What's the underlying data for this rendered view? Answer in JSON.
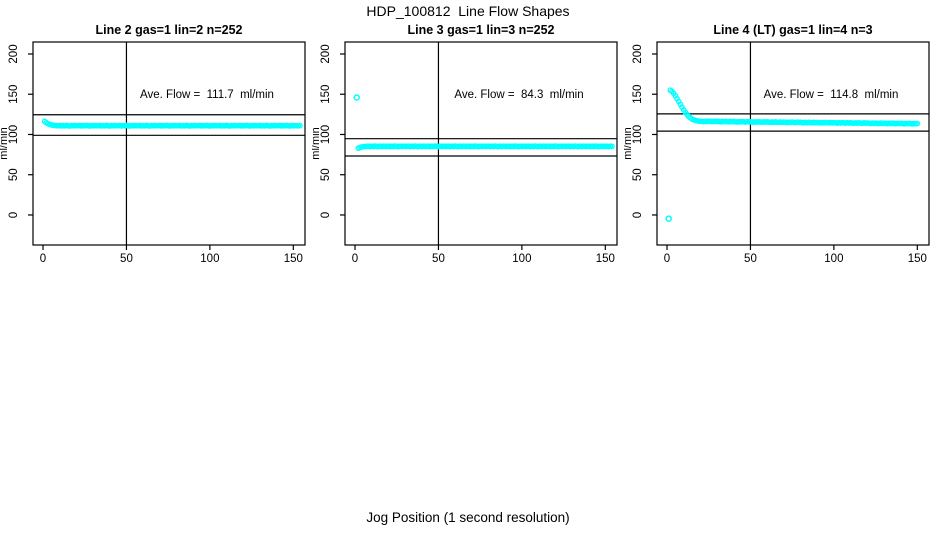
{
  "figure": {
    "title": "HDP_100812  Line Flow Shapes",
    "xlabel": "Jog Position (1 second resolution)",
    "point_color": "#00FFFF",
    "line_color": "#000000",
    "background_color": "#FFFFFF"
  },
  "chart_data": [
    {
      "type": "scatter",
      "title": "Line 2 gas=1 lin=2 n=252",
      "annotation": "Ave. Flow =  111.7  ml/min",
      "ave_flow_ml_min": 111.7,
      "n": 252,
      "ylabel": "ml/min",
      "xticks": [
        0,
        50,
        100,
        150
      ],
      "yticks": [
        0,
        50,
        100,
        150,
        200
      ],
      "xlim": [
        -6,
        157
      ],
      "ylim": [
        -37.3,
        214.9
      ],
      "vline_x": 50,
      "hlines": [
        124.5,
        99.0
      ],
      "outliers": [],
      "series": {
        "x0": 1,
        "dx": 1,
        "y": [
          116.3,
          114.6,
          113.4,
          112.5,
          111.9,
          111.5,
          111.2,
          111.0,
          110.9,
          111.2,
          110.7,
          111.1,
          110.8,
          111.3,
          110.9,
          110.6,
          111.1,
          110.8,
          111.2,
          110.9,
          110.9,
          111.2,
          110.7,
          111.1,
          110.8,
          111.3,
          110.9,
          110.6,
          111.1,
          110.8,
          111.2,
          110.9,
          110.9,
          111.2,
          110.7,
          111.1,
          110.8,
          111.3,
          110.9,
          110.6,
          111.1,
          110.8,
          111.2,
          110.9,
          110.9,
          111.2,
          110.7,
          111.1,
          110.8,
          111.3,
          110.9,
          110.6,
          111.1,
          110.8,
          111.2,
          110.9,
          110.9,
          111.2,
          110.7,
          111.1,
          110.8,
          111.3,
          110.9,
          110.6,
          111.1,
          110.8,
          111.2,
          110.9,
          110.9,
          111.2,
          110.7,
          111.1,
          110.8,
          111.3,
          110.9,
          110.6,
          111.1,
          110.8,
          111.2,
          110.9,
          110.9,
          111.2,
          110.7,
          111.1,
          110.8,
          111.3,
          110.9,
          110.6,
          111.1,
          110.8,
          111.2,
          110.9,
          110.9,
          111.2,
          110.7,
          111.1,
          110.8,
          111.3,
          110.9,
          110.6,
          111.1,
          110.8,
          111.2,
          110.9,
          110.9,
          111.2,
          110.7,
          111.1,
          110.8,
          111.3,
          110.9,
          110.6,
          111.1,
          110.8,
          111.2,
          110.9,
          110.9,
          111.2,
          110.7,
          111.1,
          110.8,
          111.3,
          110.9,
          110.6,
          111.1,
          110.8,
          111.2,
          110.9,
          110.9,
          111.2,
          110.7,
          111.1,
          110.8,
          111.3,
          110.9,
          110.6,
          111.1,
          110.8,
          111.2,
          110.9,
          110.9,
          111.2,
          110.7,
          111.1,
          110.8,
          111.3,
          110.9,
          110.6,
          111.1,
          110.8,
          111.2,
          110.9,
          110.8,
          111.1
        ]
      }
    },
    {
      "type": "scatter",
      "title": "Line 3 gas=1 lin=3 n=252",
      "annotation": "Ave. Flow =  84.3  ml/min",
      "ave_flow_ml_min": 84.3,
      "n": 252,
      "ylabel": "ml/min",
      "xticks": [
        0,
        50,
        100,
        150
      ],
      "yticks": [
        0,
        50,
        100,
        150,
        200
      ],
      "xlim": [
        -6,
        157
      ],
      "ylim": [
        -37.3,
        214.9
      ],
      "vline_x": 50,
      "hlines": [
        94.8,
        73.3
      ],
      "outliers": [
        [
          1,
          146
        ]
      ],
      "series": {
        "x0": 2,
        "dx": 1,
        "y": [
          83.0,
          83.8,
          84.4,
          84.8,
          85.0,
          85.2,
          85.5,
          85.0,
          85.4,
          85.1,
          85.6,
          85.2,
          84.9,
          85.4,
          85.1,
          85.5,
          85.2,
          85.2,
          85.5,
          85.0,
          85.4,
          85.1,
          85.6,
          85.2,
          84.9,
          85.4,
          85.1,
          85.5,
          85.2,
          85.2,
          85.5,
          85.0,
          85.4,
          85.1,
          85.6,
          85.2,
          84.9,
          85.4,
          85.1,
          85.5,
          85.2,
          85.2,
          85.5,
          85.0,
          85.4,
          85.1,
          85.6,
          85.2,
          84.9,
          85.4,
          85.1,
          85.5,
          85.2,
          85.2,
          85.5,
          85.0,
          85.4,
          85.1,
          85.6,
          85.2,
          84.9,
          85.4,
          85.1,
          85.5,
          85.2,
          85.2,
          85.5,
          85.0,
          85.4,
          85.1,
          85.6,
          85.2,
          84.9,
          85.4,
          85.1,
          85.5,
          85.2,
          85.2,
          85.5,
          85.0,
          85.4,
          85.1,
          85.6,
          85.2,
          84.9,
          85.4,
          85.1,
          85.5,
          85.2,
          85.2,
          85.5,
          85.0,
          85.4,
          85.1,
          85.6,
          85.2,
          84.9,
          85.4,
          85.1,
          85.5,
          85.2,
          85.2,
          85.5,
          85.0,
          85.4,
          85.1,
          85.6,
          85.2,
          84.9,
          85.4,
          85.1,
          85.5,
          85.2,
          85.2,
          85.5,
          85.0,
          85.4,
          85.1,
          85.6,
          85.2,
          84.9,
          85.4,
          85.1,
          85.5,
          85.2,
          85.2,
          85.5,
          85.0,
          85.4,
          85.1,
          85.6,
          85.2,
          84.9,
          85.4,
          85.1,
          85.5,
          85.2,
          85.2,
          85.5,
          85.0,
          85.4,
          85.1,
          85.6,
          85.2,
          84.9,
          85.4,
          85.1,
          85.5,
          85.2,
          85.3,
          85.0,
          85.5,
          85.2
        ]
      }
    },
    {
      "type": "scatter",
      "title": "Line 4 (LT) gas=1 lin=4 n=3",
      "annotation": "Ave. Flow =  114.8  ml/min",
      "ave_flow_ml_min": 114.8,
      "n": 3,
      "ylabel": "ml/min",
      "xticks": [
        0,
        50,
        100,
        150
      ],
      "yticks": [
        0,
        50,
        100,
        150,
        200
      ],
      "xlim": [
        -6,
        157
      ],
      "ylim": [
        -37.3,
        214.9
      ],
      "vline_x": 50,
      "hlines": [
        125.6,
        104.2
      ],
      "outliers": [
        [
          1,
          -4.5
        ]
      ],
      "series": {
        "x0": 2,
        "dx": 1,
        "y": [
          155.0,
          153.5,
          151.0,
          148.0,
          144.5,
          141.0,
          137.5,
          134.0,
          130.5,
          127.5,
          124.8,
          122.5,
          120.6,
          119.2,
          118.2,
          117.5,
          117.0,
          116.6,
          116.4,
          116.3,
          116.0,
          116.4,
          116.1,
          116.5,
          116.2,
          116.0,
          116.4,
          116.1,
          116.3,
          116.1,
          115.8,
          116.2,
          115.9,
          116.3,
          116.0,
          115.8,
          116.2,
          115.9,
          116.1,
          115.8,
          115.5,
          115.9,
          115.6,
          116.0,
          115.7,
          115.5,
          115.9,
          115.6,
          115.8,
          115.6,
          115.3,
          115.7,
          115.4,
          115.8,
          115.5,
          115.3,
          115.7,
          115.4,
          115.6,
          115.4,
          115.1,
          115.5,
          115.2,
          115.6,
          115.3,
          115.1,
          115.5,
          115.2,
          115.4,
          115.2,
          114.9,
          115.3,
          115.0,
          115.4,
          115.1,
          114.9,
          115.3,
          115.0,
          115.2,
          114.9,
          114.6,
          115.0,
          114.7,
          115.1,
          114.8,
          114.6,
          115.0,
          114.7,
          114.9,
          114.7,
          114.4,
          114.8,
          114.5,
          114.9,
          114.6,
          114.4,
          114.8,
          114.5,
          114.7,
          114.5,
          114.2,
          114.6,
          114.3,
          114.7,
          114.4,
          114.2,
          114.6,
          114.3,
          114.5,
          114.3,
          114.0,
          114.4,
          114.1,
          114.5,
          114.2,
          114.0,
          114.4,
          114.1,
          114.3,
          114.0,
          113.7,
          114.1,
          113.8,
          114.2,
          113.9,
          113.7,
          114.1,
          113.8,
          114.0,
          113.8,
          113.5,
          113.9,
          113.6,
          114.0,
          113.7,
          113.5,
          113.9,
          113.6,
          113.8,
          113.6,
          113.3,
          113.7,
          113.4,
          113.8,
          113.5,
          113.3,
          113.7,
          113.4,
          113.6
        ]
      }
    }
  ]
}
